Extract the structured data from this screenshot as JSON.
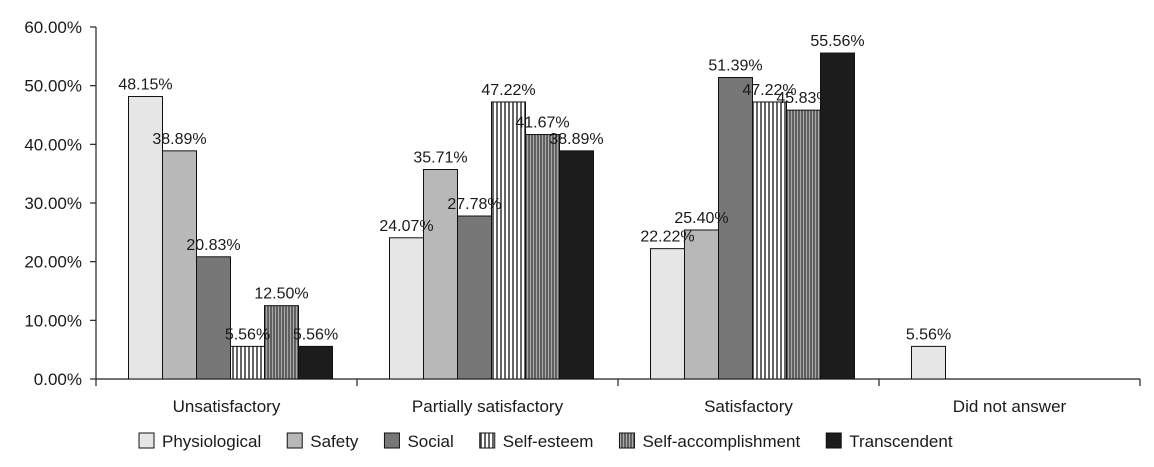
{
  "chart_data": {
    "type": "bar",
    "title": "",
    "xlabel": "",
    "ylabel": "",
    "ylim": [
      0,
      60
    ],
    "y_ticks": [
      "0.00%",
      "10.00%",
      "20.00%",
      "30.00%",
      "40.00%",
      "50.00%",
      "60.00%"
    ],
    "categories": [
      "Unsatisfactory",
      "Partially satisfactory",
      "Satisfactory",
      "Did not answer"
    ],
    "legend_position": "bottom",
    "grid": false,
    "series": [
      {
        "name": "Physiological",
        "fill": "light-gray",
        "color": "#e6e6e6",
        "values": [
          48.15,
          24.07,
          22.22,
          5.56
        ],
        "labels": [
          "48.15%",
          "24.07%",
          "22.22%",
          "5.56%"
        ]
      },
      {
        "name": "Safety",
        "fill": "medium-gray",
        "color": "#b8b8b8",
        "values": [
          38.89,
          35.71,
          25.4,
          0
        ],
        "labels": [
          "38.89%",
          "35.71%",
          "25.40%",
          ""
        ]
      },
      {
        "name": "Social",
        "fill": "dark-gray",
        "color": "#777777",
        "values": [
          20.83,
          27.78,
          51.39,
          0
        ],
        "labels": [
          "20.83%",
          "27.78%",
          "51.39%",
          ""
        ]
      },
      {
        "name": "Self-esteem",
        "fill": "vertical-stripes-sparse",
        "color": "#000000",
        "values": [
          5.56,
          47.22,
          47.22,
          0
        ],
        "labels": [
          "5.56%",
          "47.22%",
          "47.22%",
          ""
        ]
      },
      {
        "name": "Self-accomplishment",
        "fill": "vertical-stripes-dense",
        "color": "#555555",
        "values": [
          12.5,
          41.67,
          45.83,
          0
        ],
        "labels": [
          "12.50%",
          "41.67%",
          "45.83%",
          ""
        ]
      },
      {
        "name": "Transcendent",
        "fill": "black",
        "color": "#1c1c1c",
        "values": [
          5.56,
          38.89,
          55.56,
          0
        ],
        "labels": [
          "5.56%",
          "38.89%",
          "55.56%",
          ""
        ]
      }
    ]
  }
}
